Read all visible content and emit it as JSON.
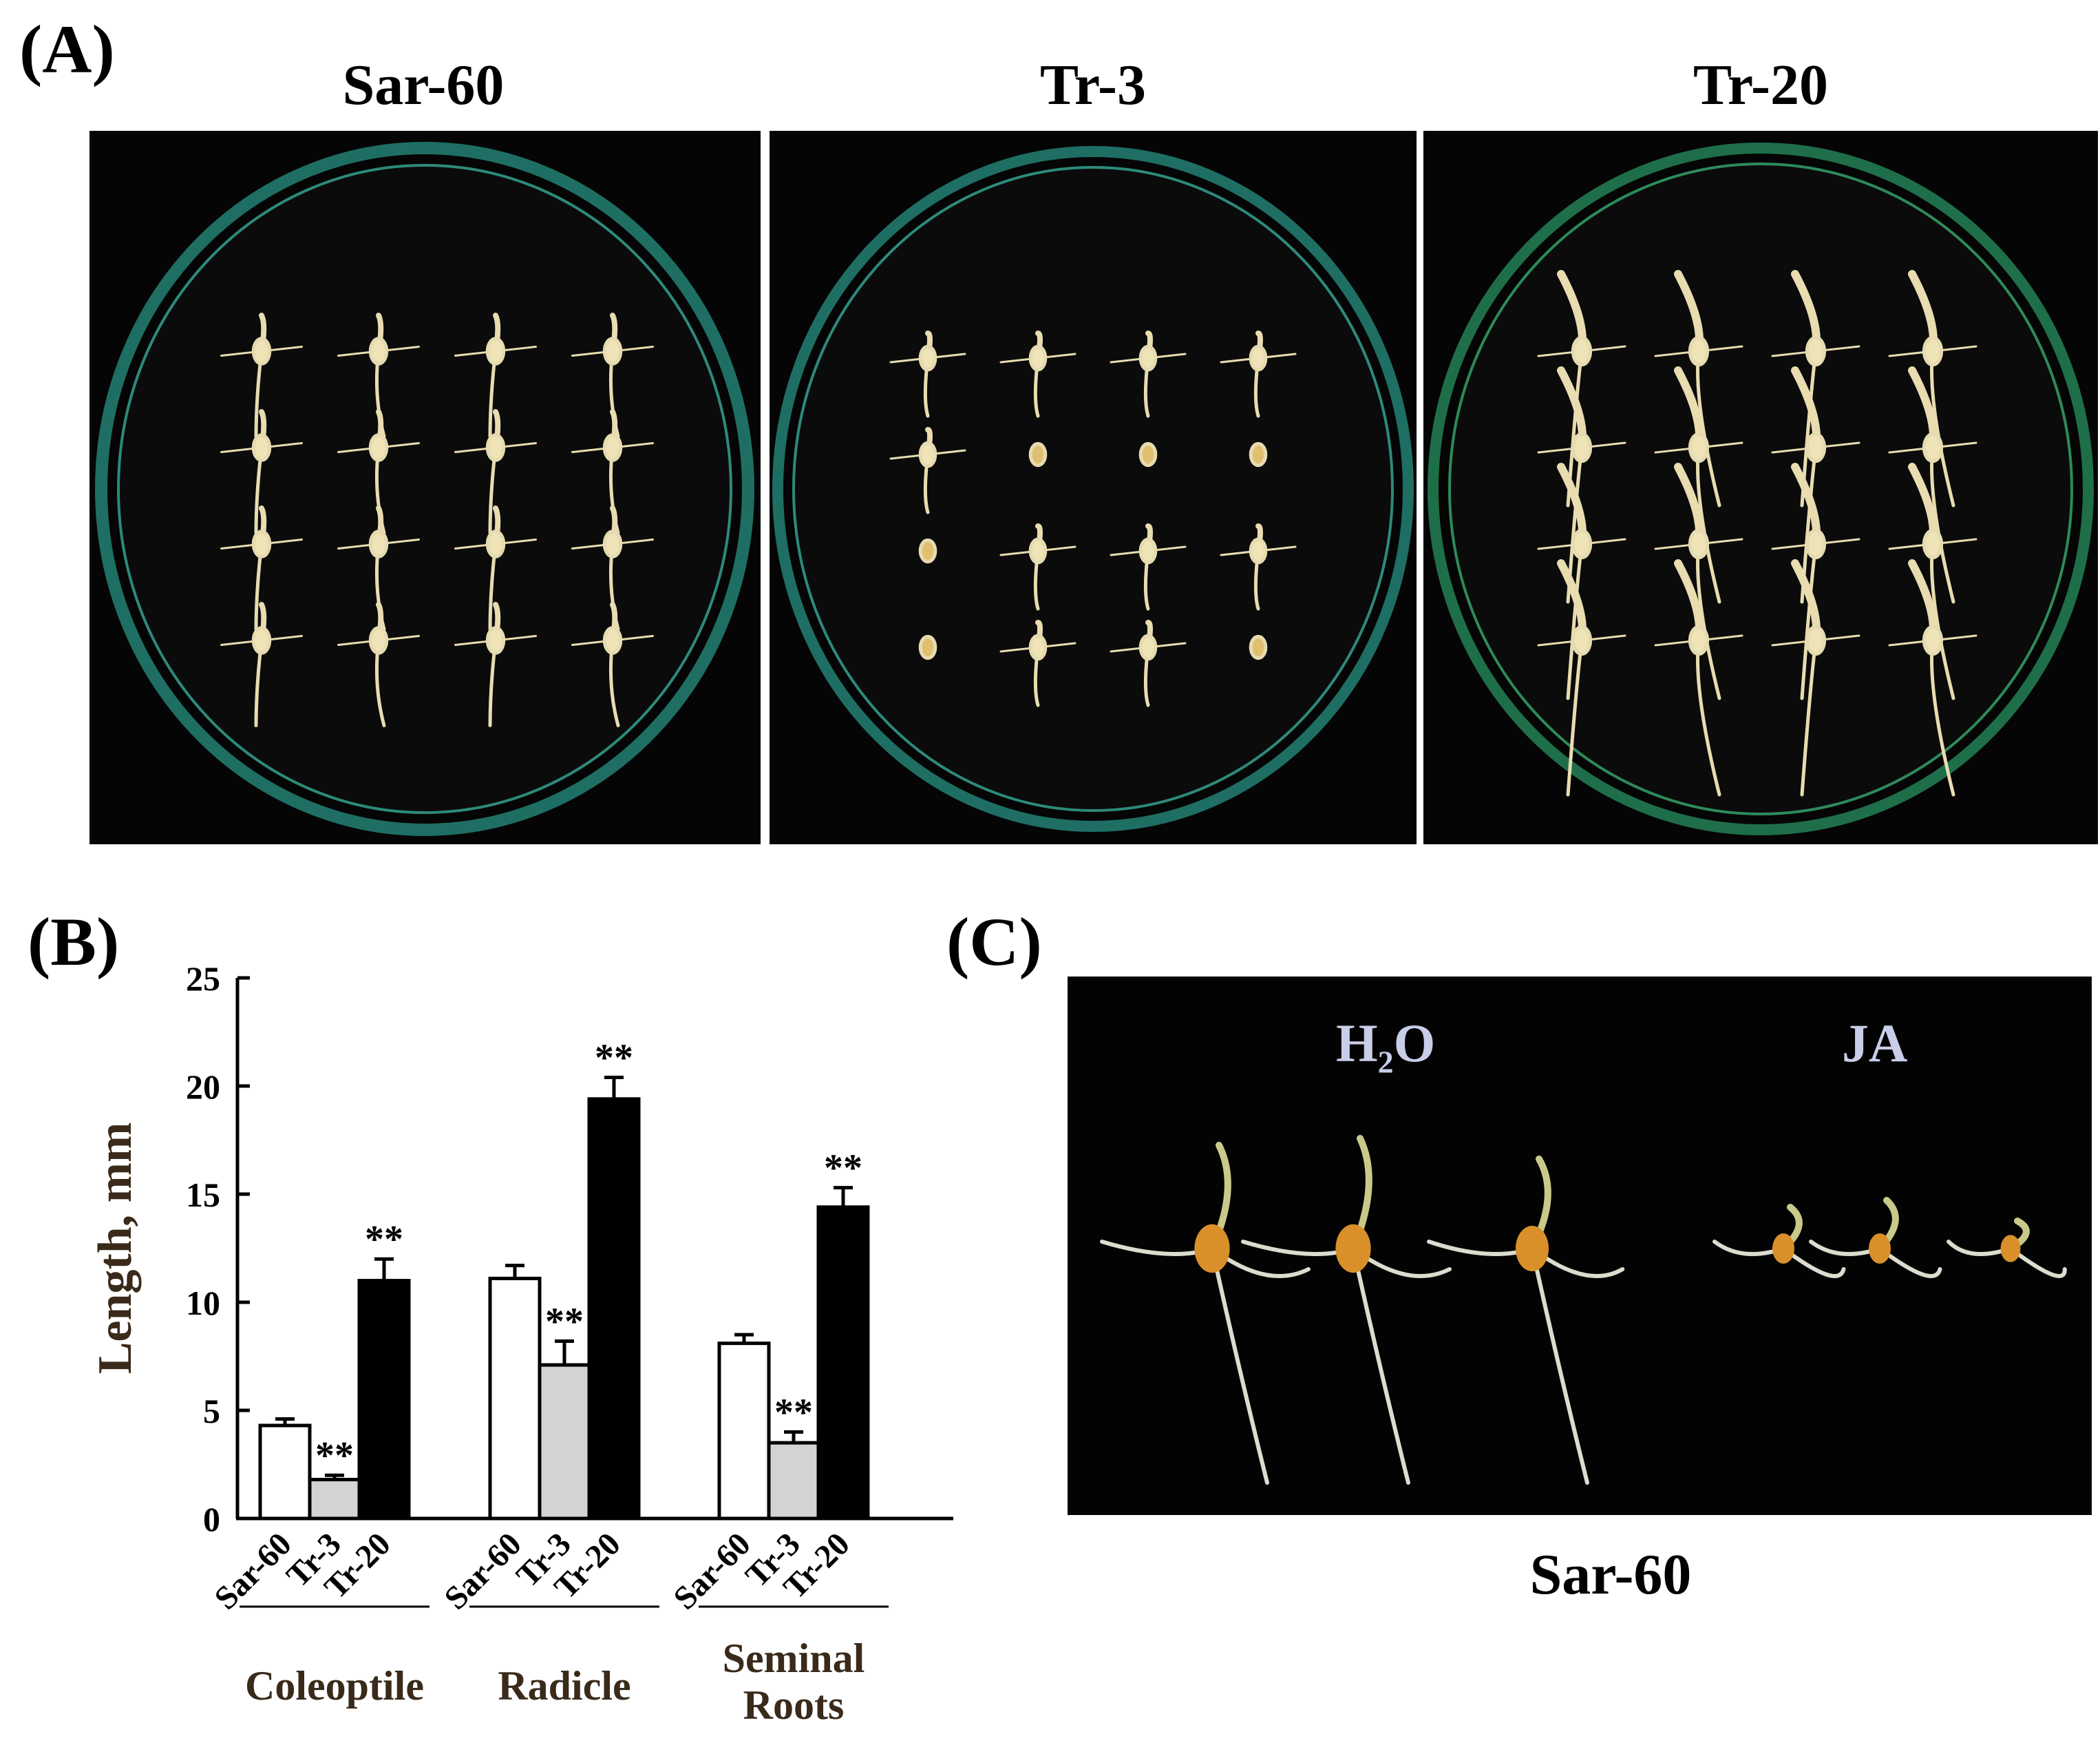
{
  "panels": {
    "a_letter": "(A)",
    "b_letter": "(B)",
    "c_letter": "(C)"
  },
  "panel_a": {
    "plates": [
      "Sar-60",
      "Tr-3",
      "Tr-20"
    ]
  },
  "panel_c": {
    "treatment_left_main": "H",
    "treatment_left_sub": "2",
    "treatment_left_tail": "O",
    "treatment_right": "JA",
    "caption": "Sar-60"
  },
  "colors": {
    "sar60_bar": "#ffffff",
    "tr3_bar": "#d3d3d3",
    "tr20_bar": "#000000",
    "axis_label": "#3a2a1a",
    "photo_bg": "#050505",
    "seedling": "#e8dcb0",
    "seed": "#d9902a"
  },
  "chart_data": {
    "type": "bar",
    "ylabel": "Length, mm",
    "ylim": [
      0,
      25
    ],
    "yticks": [
      0,
      5,
      10,
      15,
      20,
      25
    ],
    "group_labels": [
      "Coleoptile",
      "Radicle",
      "Seminal Roots"
    ],
    "group_label_lines": [
      [
        "Coleoptile"
      ],
      [
        "Radicle"
      ],
      [
        "Seminal",
        "Roots"
      ]
    ],
    "categories": [
      "Sar-60",
      "Tr-3",
      "Tr-20"
    ],
    "significance_marker": "**",
    "series": [
      {
        "name": "Sar-60",
        "values": [
          4.3,
          11.1,
          8.1
        ],
        "errors": [
          0.3,
          0.6,
          0.4
        ],
        "significant": [
          false,
          false,
          false
        ]
      },
      {
        "name": "Tr-3",
        "values": [
          1.8,
          7.1,
          3.5
        ],
        "errors": [
          0.2,
          1.1,
          0.5
        ],
        "significant": [
          true,
          true,
          true
        ]
      },
      {
        "name": "Tr-20",
        "values": [
          11.0,
          19.4,
          14.4
        ],
        "errors": [
          1.0,
          1.0,
          0.9
        ],
        "significant": [
          true,
          true,
          true
        ]
      }
    ]
  }
}
